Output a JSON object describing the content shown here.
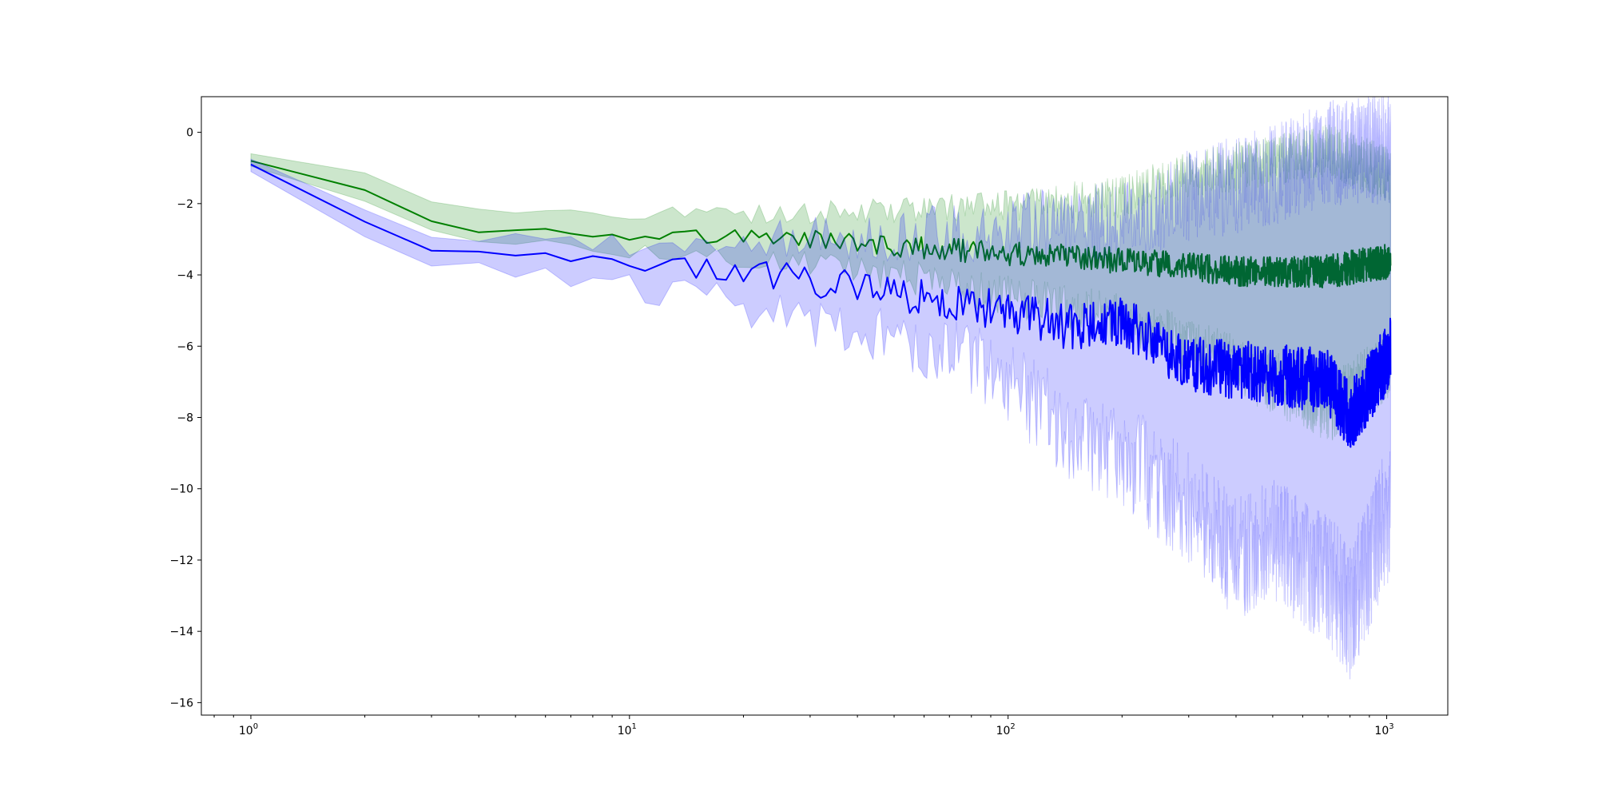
{
  "chart_data": {
    "type": "line",
    "title": "",
    "xlabel": "",
    "ylabel": "",
    "xscale": "log",
    "xlim": [
      0.74,
      1450
    ],
    "ylim": [
      -16.35,
      1.0
    ],
    "grid": false,
    "legend": "none",
    "x_ticks": [
      {
        "base": "10",
        "exp": "0",
        "value": 1
      },
      {
        "base": "10",
        "exp": "1",
        "value": 10
      },
      {
        "base": "10",
        "exp": "2",
        "value": 100
      },
      {
        "base": "10",
        "exp": "3",
        "value": 1000
      }
    ],
    "y_ticks": [
      {
        "label": "0",
        "value": 0
      },
      {
        "label": "−2",
        "value": -2
      },
      {
        "label": "−4",
        "value": -4
      },
      {
        "label": "−6",
        "value": -6
      },
      {
        "label": "−8",
        "value": -8
      },
      {
        "label": "−10",
        "value": -10
      },
      {
        "label": "−12",
        "value": -12
      },
      {
        "label": "−14",
        "value": -14
      },
      {
        "label": "−16",
        "value": -16
      }
    ],
    "x_range": [
      1,
      1024
    ],
    "series": [
      {
        "color": "#008000",
        "band_color": "#008000",
        "band_opacity": 0.2,
        "mean_keypoints": [
          [
            1,
            -0.8
          ],
          [
            2,
            -1.6
          ],
          [
            3,
            -2.45
          ],
          [
            4,
            -2.75
          ],
          [
            5,
            -2.72
          ],
          [
            7,
            -2.8
          ],
          [
            10,
            -2.85
          ],
          [
            20,
            -2.95
          ],
          [
            30,
            -3.0
          ],
          [
            50,
            -3.2
          ],
          [
            100,
            -3.4
          ],
          [
            200,
            -3.6
          ],
          [
            400,
            -3.9
          ],
          [
            700,
            -3.9
          ],
          [
            1024,
            -3.6
          ]
        ],
        "upper_keypoints": [
          [
            1,
            -0.6
          ],
          [
            2,
            -1.1
          ],
          [
            3,
            -1.95
          ],
          [
            4,
            -2.2
          ],
          [
            5,
            -2.2
          ],
          [
            10,
            -2.25
          ],
          [
            20,
            -2.3
          ],
          [
            50,
            -2.2
          ],
          [
            100,
            -2.1
          ],
          [
            200,
            -1.8
          ],
          [
            300,
            -1.2
          ],
          [
            500,
            -0.8
          ],
          [
            700,
            -0.5
          ],
          [
            1024,
            -1.2
          ]
        ],
        "lower_keypoints": [
          [
            1,
            -0.95
          ],
          [
            2,
            -1.9
          ],
          [
            3,
            -2.8
          ],
          [
            4,
            -3.0
          ],
          [
            5,
            -3.05
          ],
          [
            10,
            -3.3
          ],
          [
            20,
            -3.5
          ],
          [
            50,
            -4.0
          ],
          [
            100,
            -4.6
          ],
          [
            200,
            -5.2
          ],
          [
            300,
            -6.0
          ],
          [
            500,
            -7.0
          ],
          [
            700,
            -7.8
          ],
          [
            1024,
            -6.5
          ]
        ],
        "mean_noise": [
          0.0,
          0.08,
          0.22,
          0.32,
          0.38,
          0.5
        ],
        "band_noise": [
          0.0,
          0.1,
          0.3,
          0.5,
          0.8,
          1.0
        ]
      },
      {
        "color": "#0000ff",
        "band_color": "#0000ff",
        "band_opacity": 0.2,
        "mean_keypoints": [
          [
            1,
            -0.9
          ],
          [
            2,
            -2.45
          ],
          [
            3,
            -3.35
          ],
          [
            4,
            -3.4
          ],
          [
            5,
            -3.4
          ],
          [
            7,
            -3.6
          ],
          [
            10,
            -3.75
          ],
          [
            20,
            -3.95
          ],
          [
            30,
            -4.15
          ],
          [
            50,
            -4.5
          ],
          [
            100,
            -5.0
          ],
          [
            150,
            -5.5
          ],
          [
            200,
            -5.3
          ],
          [
            300,
            -6.5
          ],
          [
            500,
            -6.8
          ],
          [
            700,
            -7.0
          ],
          [
            800,
            -8.0
          ],
          [
            1024,
            -6.2
          ]
        ],
        "upper_keypoints": [
          [
            1,
            -0.75
          ],
          [
            2,
            -2.15
          ],
          [
            3,
            -2.95
          ],
          [
            5,
            -3.0
          ],
          [
            10,
            -3.2
          ],
          [
            20,
            -3.1
          ],
          [
            30,
            -2.9
          ],
          [
            50,
            -2.9
          ],
          [
            100,
            -2.7
          ],
          [
            200,
            -2.4
          ],
          [
            300,
            -1.8
          ],
          [
            500,
            -1.2
          ],
          [
            700,
            -0.6
          ],
          [
            1024,
            -0.4
          ]
        ],
        "lower_keypoints": [
          [
            1,
            -1.1
          ],
          [
            2,
            -2.85
          ],
          [
            3,
            -3.75
          ],
          [
            5,
            -3.85
          ],
          [
            10,
            -4.3
          ],
          [
            15,
            -4.6
          ],
          [
            20,
            -4.9
          ],
          [
            30,
            -5.3
          ],
          [
            50,
            -5.8
          ],
          [
            80,
            -6.3
          ],
          [
            100,
            -7.0
          ],
          [
            150,
            -8.5
          ],
          [
            200,
            -9.0
          ],
          [
            300,
            -10.5
          ],
          [
            400,
            -12.0
          ],
          [
            500,
            -11.5
          ],
          [
            700,
            -12.5
          ],
          [
            800,
            -13.5
          ],
          [
            1024,
            -10.5
          ]
        ],
        "mean_noise": [
          0.0,
          0.15,
          0.35,
          0.55,
          0.75,
          1.0
        ],
        "band_noise": [
          0.0,
          0.2,
          0.5,
          1.0,
          1.6,
          2.0
        ]
      }
    ]
  }
}
